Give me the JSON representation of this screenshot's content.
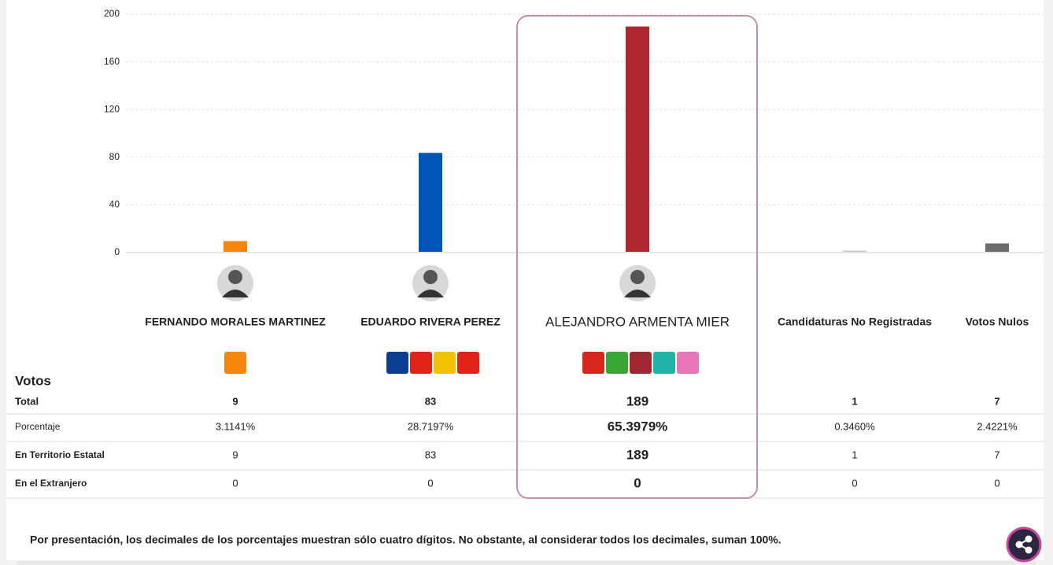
{
  "chart_data": {
    "type": "bar",
    "categories": [
      "FERNANDO MORALES MARTINEZ",
      "EDUARDO RIVERA PEREZ",
      "ALEJANDRO ARMENTA MIER",
      "Candidaturas No Registradas",
      "Votos Nulos"
    ],
    "values": [
      9,
      83,
      189,
      1,
      7
    ],
    "colors": [
      "#f7860f",
      "#0055b8",
      "#b0282f",
      "#c8c8c8",
      "#6d6d6d"
    ],
    "ylim": [
      0,
      200
    ],
    "yticks": [
      0,
      40,
      80,
      120,
      160,
      200
    ],
    "grid": true,
    "highlight_index": 2
  },
  "table": {
    "heading": "Votos",
    "total_label": "Total",
    "rows": [
      {
        "label": "Porcentaje",
        "values": [
          "3.1141%",
          "28.7197%",
          "65.3979%",
          "0.3460%",
          "2.4221%"
        ]
      },
      {
        "label": "En Territorio Estatal",
        "values": [
          "9",
          "83",
          "189",
          "1",
          "7"
        ]
      },
      {
        "label": "En el Extranjero",
        "values": [
          "0",
          "0",
          "0",
          "0",
          "0"
        ]
      }
    ]
  },
  "footnote": "Por presentación, los decimales de los porcentajes muestran sólo cuatro dígitos. No obstante, al considerar todos los decimales, suman 100%."
}
